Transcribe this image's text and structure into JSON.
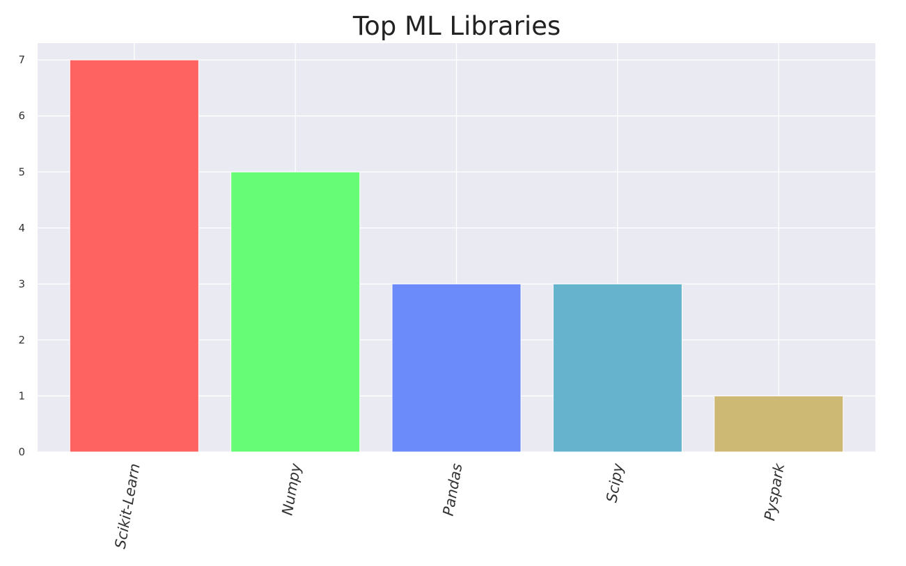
{
  "chart_data": {
    "type": "bar",
    "title": "Top ML Libraries",
    "xlabel": "",
    "ylabel": "",
    "categories": [
      "Scikit-Learn",
      "Numpy",
      "Pandas",
      "Scipy",
      "Pyspark"
    ],
    "values": [
      7,
      5,
      3,
      3,
      1
    ],
    "colors": [
      "#ff6361",
      "#66fc76",
      "#6c8bfa",
      "#66b3ce",
      "#cdb874"
    ],
    "ylim": [
      0,
      7.3
    ],
    "yticks": [
      0,
      1,
      2,
      3,
      4,
      5,
      6,
      7
    ],
    "grid": true,
    "background": "#eaeaf2",
    "grid_color": "#ffffff",
    "legend": "none"
  }
}
